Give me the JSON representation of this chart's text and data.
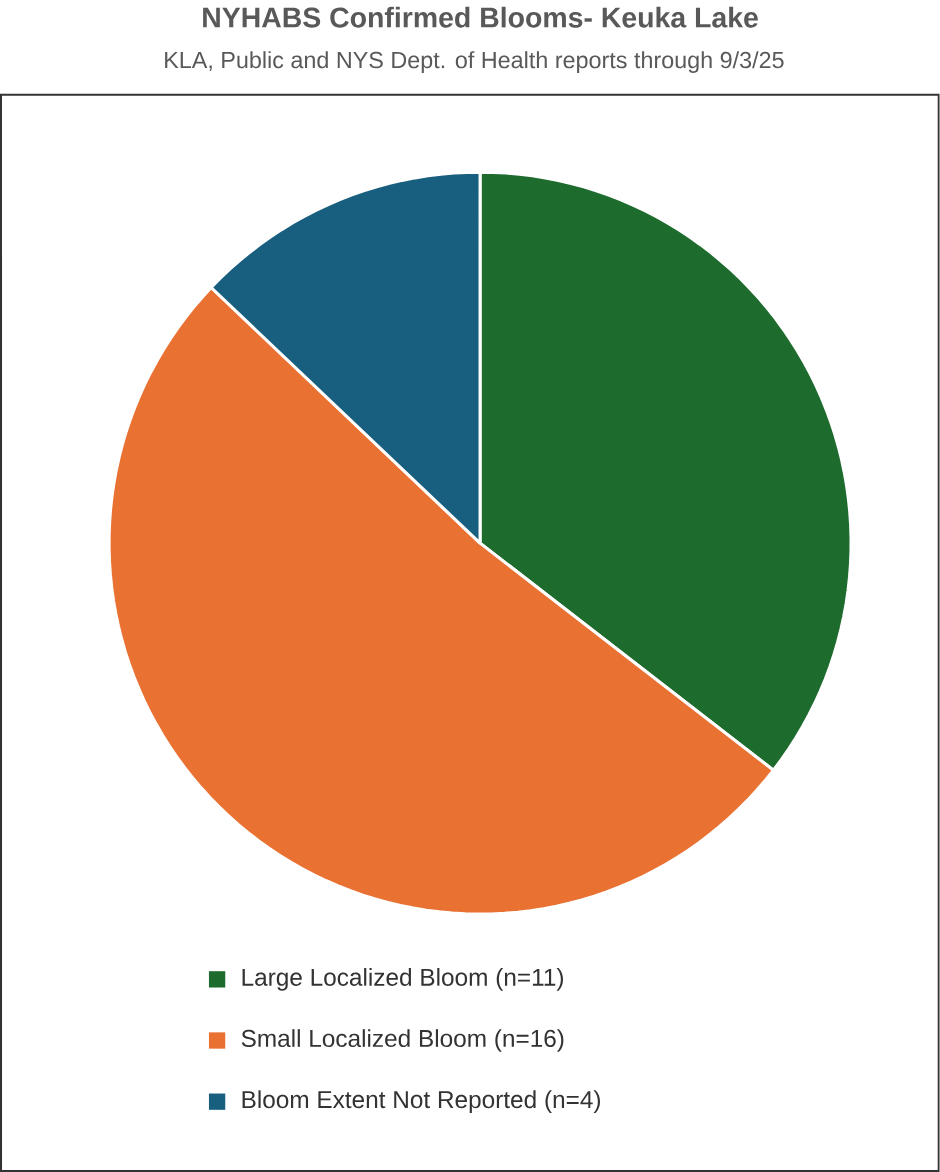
{
  "chart_data": {
    "type": "pie",
    "title": "NYHABS Confirmed Blooms- Keuka Lake",
    "subtitle": "KLA, Public and NYS Dept. of Health reports through 9/3/25",
    "categories": [
      "Large Localized Bloom (n=11)",
      "Small Localized Bloom (n=16)",
      "Bloom Extent Not Reported (n=4)"
    ],
    "values": [
      11,
      16,
      4
    ],
    "colors": [
      "#1e6b2e",
      "#e97132",
      "#185e7f"
    ],
    "legend": "bottom"
  }
}
